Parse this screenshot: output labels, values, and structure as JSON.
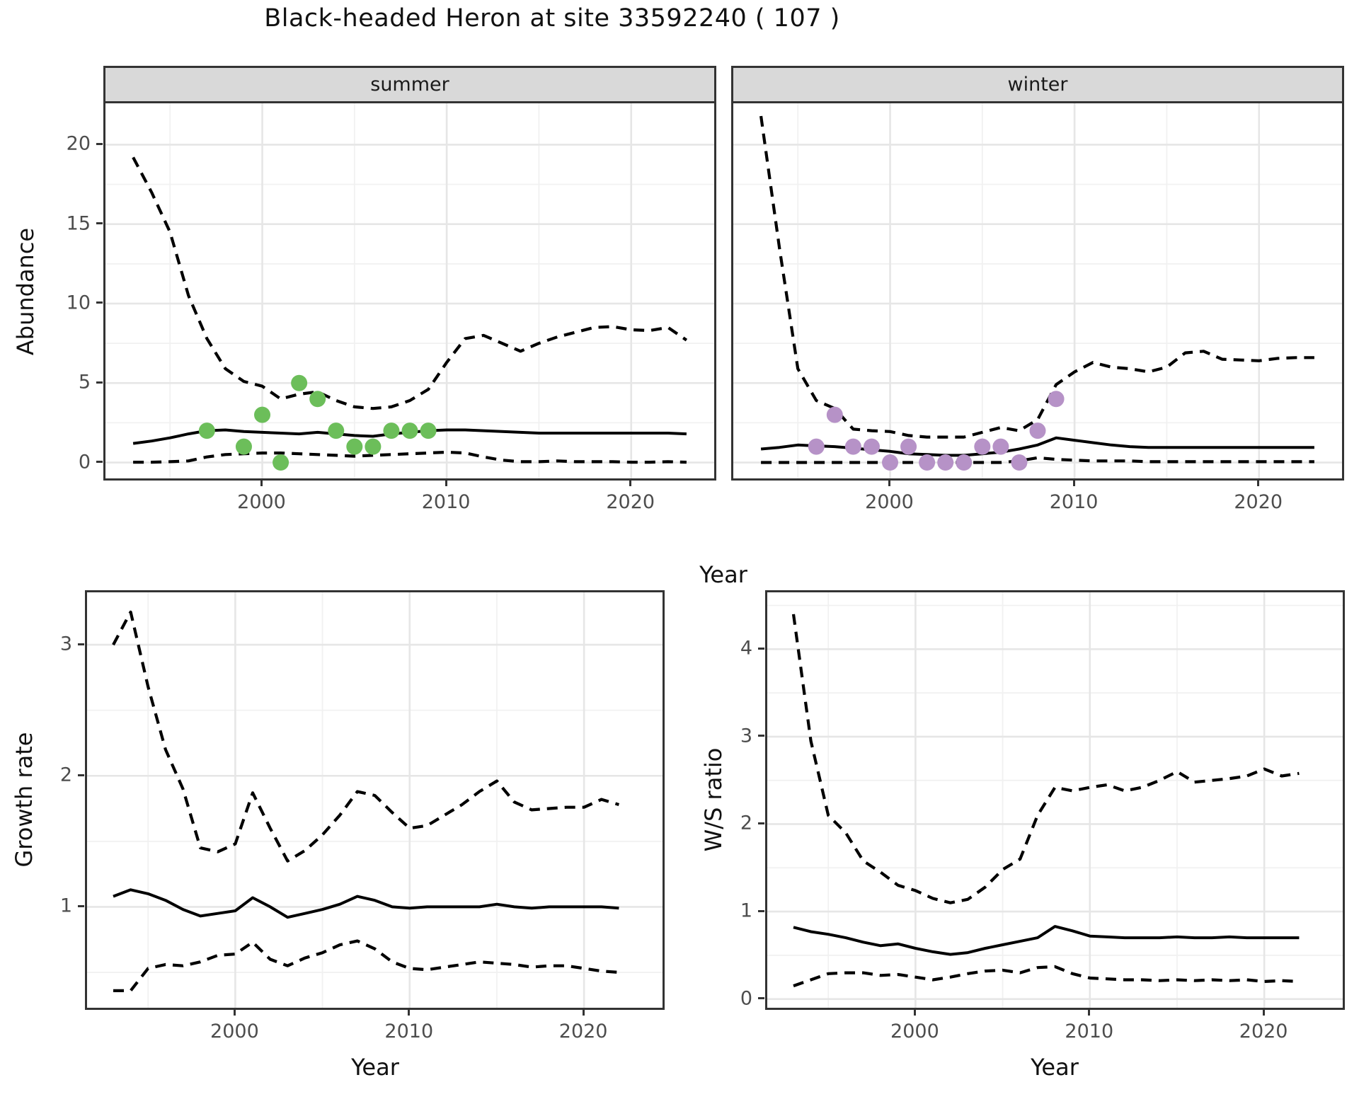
{
  "title": "Black-headed Heron at site 33592240 ( 107 )",
  "facet_labels": {
    "summer": "summer",
    "winter": "winter"
  },
  "axis_titles": {
    "y_top": "Abundance",
    "y_bottom_left": "Growth rate",
    "y_bottom_right": "W/S ratio",
    "x_top": "Year",
    "x_bottom_left": "Year",
    "x_bottom_right": "Year"
  },
  "colors": {
    "summer_points": "#6cbe5a",
    "winter_points": "#b692c7",
    "line": "#000000",
    "grid_major": "#e6e6e6",
    "grid_minor": "#f1f1f1",
    "panel_border": "#333333",
    "strip_bg": "#d9d9d9",
    "tick_text": "#4d4d4d",
    "title_text": "#111111"
  },
  "chart_data": [
    {
      "id": "abundance-summer",
      "type": "line",
      "facet": "summer",
      "ylabel": "Abundance",
      "xlabel": "Year",
      "xlim": [
        1991.5,
        2024.5
      ],
      "ylim": [
        -1.0,
        22.6
      ],
      "xticks": [
        2000,
        2010,
        2020
      ],
      "xminor": [
        1995,
        2005,
        2015
      ],
      "yticks": [
        0,
        5,
        10,
        15,
        20
      ],
      "yminor": [
        2.5,
        7.5,
        12.5,
        17.5
      ],
      "x": [
        1993,
        1994,
        1995,
        1996,
        1997,
        1998,
        1999,
        2000,
        2001,
        2002,
        2003,
        2004,
        2005,
        2006,
        2007,
        2008,
        2009,
        2010,
        2011,
        2012,
        2013,
        2014,
        2015,
        2016,
        2017,
        2018,
        2019,
        2020,
        2021,
        2022,
        2023
      ],
      "series": [
        {
          "name": "upper-credible",
          "style": "dashed",
          "values": [
            19.2,
            17.0,
            14.5,
            10.5,
            7.8,
            5.9,
            5.1,
            4.8,
            4.0,
            4.3,
            4.45,
            3.9,
            3.5,
            3.4,
            3.5,
            3.9,
            4.6,
            6.3,
            7.8,
            8.0,
            7.5,
            7.0,
            7.5,
            7.9,
            8.2,
            8.5,
            8.55,
            8.35,
            8.3,
            8.5,
            7.7
          ]
        },
        {
          "name": "median",
          "style": "solid",
          "values": [
            1.2,
            1.35,
            1.55,
            1.8,
            2.0,
            2.05,
            1.95,
            1.9,
            1.85,
            1.8,
            1.9,
            1.8,
            1.7,
            1.65,
            1.8,
            1.9,
            2.0,
            2.05,
            2.05,
            2.0,
            1.95,
            1.9,
            1.85,
            1.85,
            1.85,
            1.85,
            1.85,
            1.85,
            1.85,
            1.85,
            1.8
          ]
        },
        {
          "name": "lower-credible",
          "style": "dashed",
          "values": [
            0.02,
            0.02,
            0.05,
            0.1,
            0.35,
            0.5,
            0.55,
            0.6,
            0.6,
            0.55,
            0.5,
            0.45,
            0.4,
            0.45,
            0.5,
            0.55,
            0.6,
            0.65,
            0.6,
            0.35,
            0.15,
            0.05,
            0.05,
            0.1,
            0.05,
            0.05,
            0.05,
            0.02,
            0.02,
            0.05,
            0.02
          ]
        }
      ],
      "points": {
        "name": "observed-counts-summer",
        "color_key": "summer_points",
        "data": [
          [
            1997,
            2
          ],
          [
            1999,
            1
          ],
          [
            2000,
            3
          ],
          [
            2001,
            0
          ],
          [
            2002,
            5
          ],
          [
            2003,
            4
          ],
          [
            2004,
            2
          ],
          [
            2005,
            1
          ],
          [
            2006,
            1
          ],
          [
            2007,
            2
          ],
          [
            2008,
            2
          ],
          [
            2009,
            2
          ]
        ]
      }
    },
    {
      "id": "abundance-winter",
      "type": "line",
      "facet": "winter",
      "ylabel": "Abundance",
      "xlabel": "Year",
      "xlim": [
        1991.5,
        2024.5
      ],
      "ylim": [
        -1.0,
        22.6
      ],
      "xticks": [
        2000,
        2010,
        2020
      ],
      "xminor": [
        1995,
        2005,
        2015
      ],
      "yticks": [
        0,
        5,
        10,
        15,
        20
      ],
      "yminor": [
        2.5,
        7.5,
        12.5,
        17.5
      ],
      "x": [
        1993,
        1994,
        1995,
        1996,
        1997,
        1998,
        1999,
        2000,
        2001,
        2002,
        2003,
        2004,
        2005,
        2006,
        2007,
        2008,
        2009,
        2010,
        2011,
        2012,
        2013,
        2014,
        2015,
        2016,
        2017,
        2018,
        2019,
        2020,
        2021,
        2022,
        2023
      ],
      "series": [
        {
          "name": "upper-credible",
          "style": "dashed",
          "values": [
            21.8,
            13.5,
            5.9,
            3.9,
            3.4,
            2.1,
            2.0,
            1.95,
            1.7,
            1.6,
            1.6,
            1.6,
            1.9,
            2.2,
            2.0,
            2.7,
            4.9,
            5.7,
            6.3,
            6.0,
            5.9,
            5.7,
            6.0,
            6.9,
            7.0,
            6.5,
            6.45,
            6.4,
            6.55,
            6.6,
            6.6
          ]
        },
        {
          "name": "median",
          "style": "solid",
          "values": [
            0.85,
            0.95,
            1.1,
            1.05,
            1.0,
            0.9,
            0.8,
            0.7,
            0.55,
            0.5,
            0.45,
            0.45,
            0.55,
            0.65,
            0.85,
            1.1,
            1.55,
            1.4,
            1.25,
            1.1,
            1.0,
            0.95,
            0.95,
            0.95,
            0.95,
            0.95,
            0.95,
            0.95,
            0.95,
            0.95,
            0.95
          ]
        },
        {
          "name": "lower-credible",
          "style": "dashed",
          "values": [
            0,
            0,
            0,
            0,
            0,
            0,
            0,
            0,
            0,
            0,
            0,
            0,
            0,
            0,
            0.1,
            0.3,
            0.2,
            0.15,
            0.1,
            0.1,
            0.1,
            0.05,
            0.05,
            0.05,
            0.05,
            0.05,
            0.05,
            0.05,
            0.05,
            0.05,
            0.05
          ]
        }
      ],
      "points": {
        "name": "observed-counts-winter",
        "color_key": "winter_points",
        "data": [
          [
            1996,
            1
          ],
          [
            1997,
            3
          ],
          [
            1998,
            1
          ],
          [
            1999,
            1
          ],
          [
            2000,
            0
          ],
          [
            2001,
            1
          ],
          [
            2002,
            0
          ],
          [
            2003,
            0
          ],
          [
            2004,
            0
          ],
          [
            2005,
            1
          ],
          [
            2006,
            1
          ],
          [
            2007,
            0
          ],
          [
            2008,
            2
          ],
          [
            2009,
            4
          ]
        ]
      }
    },
    {
      "id": "growth-rate",
      "type": "line",
      "facet": null,
      "ylabel": "Growth rate",
      "xlabel": "Year",
      "xlim": [
        1991.5,
        2024.5
      ],
      "ylim": [
        0.23,
        3.4
      ],
      "xticks": [
        2000,
        2010,
        2020
      ],
      "xminor": [
        1995,
        2005,
        2015
      ],
      "yticks": [
        1,
        2,
        3
      ],
      "yminor": [
        0.5,
        1.5,
        2.5
      ],
      "x": [
        1993,
        1994,
        1995,
        1996,
        1997,
        1998,
        1999,
        2000,
        2001,
        2002,
        2003,
        2004,
        2005,
        2006,
        2007,
        2008,
        2009,
        2010,
        2011,
        2012,
        2013,
        2014,
        2015,
        2016,
        2017,
        2018,
        2019,
        2020,
        2021,
        2022
      ],
      "series": [
        {
          "name": "upper-credible",
          "style": "dashed",
          "values": [
            3.0,
            3.25,
            2.68,
            2.2,
            1.9,
            1.45,
            1.42,
            1.48,
            1.87,
            1.6,
            1.35,
            1.43,
            1.55,
            1.7,
            1.88,
            1.85,
            1.72,
            1.6,
            1.62,
            1.7,
            1.78,
            1.88,
            1.96,
            1.8,
            1.74,
            1.75,
            1.76,
            1.76,
            1.82,
            1.78
          ]
        },
        {
          "name": "median",
          "style": "solid",
          "values": [
            1.08,
            1.13,
            1.1,
            1.05,
            0.98,
            0.93,
            0.95,
            0.97,
            1.07,
            1.0,
            0.92,
            0.95,
            0.98,
            1.02,
            1.08,
            1.05,
            1.0,
            0.99,
            1.0,
            1.0,
            1.0,
            1.0,
            1.02,
            1.0,
            0.99,
            1.0,
            1.0,
            1.0,
            1.0,
            0.99
          ]
        },
        {
          "name": "lower-credible",
          "style": "dashed",
          "values": [
            0.36,
            0.36,
            0.53,
            0.56,
            0.55,
            0.58,
            0.63,
            0.64,
            0.73,
            0.6,
            0.55,
            0.61,
            0.65,
            0.71,
            0.74,
            0.68,
            0.58,
            0.53,
            0.52,
            0.54,
            0.56,
            0.58,
            0.57,
            0.56,
            0.54,
            0.55,
            0.55,
            0.53,
            0.51,
            0.5
          ]
        }
      ],
      "points": null
    },
    {
      "id": "ws-ratio",
      "type": "line",
      "facet": null,
      "ylabel": "W/S ratio",
      "xlabel": "Year",
      "xlim": [
        1991.5,
        2024.5
      ],
      "ylim": [
        -0.1,
        4.65
      ],
      "xticks": [
        2000,
        2010,
        2020
      ],
      "xminor": [
        1995,
        2005,
        2015
      ],
      "yticks": [
        0,
        1,
        2,
        3,
        4
      ],
      "yminor": [
        0.5,
        1.5,
        2.5,
        3.5,
        4.5
      ],
      "x": [
        1993,
        1994,
        1995,
        1996,
        1997,
        1998,
        1999,
        2000,
        2001,
        2002,
        2003,
        2004,
        2005,
        2006,
        2007,
        2008,
        2009,
        2010,
        2011,
        2012,
        2013,
        2014,
        2015,
        2016,
        2017,
        2018,
        2019,
        2020,
        2021,
        2022
      ],
      "series": [
        {
          "name": "upper-credible",
          "style": "dashed",
          "values": [
            4.4,
            2.95,
            2.1,
            1.9,
            1.58,
            1.45,
            1.3,
            1.24,
            1.15,
            1.1,
            1.14,
            1.28,
            1.48,
            1.6,
            2.1,
            2.42,
            2.38,
            2.42,
            2.45,
            2.38,
            2.42,
            2.5,
            2.6,
            2.48,
            2.5,
            2.52,
            2.55,
            2.63,
            2.55,
            2.58
          ]
        },
        {
          "name": "median",
          "style": "solid",
          "values": [
            0.82,
            0.77,
            0.74,
            0.7,
            0.65,
            0.61,
            0.63,
            0.58,
            0.54,
            0.51,
            0.53,
            0.58,
            0.62,
            0.66,
            0.7,
            0.83,
            0.78,
            0.72,
            0.71,
            0.7,
            0.7,
            0.7,
            0.71,
            0.7,
            0.7,
            0.71,
            0.7,
            0.7,
            0.7,
            0.7
          ]
        },
        {
          "name": "lower-credible",
          "style": "dashed",
          "values": [
            0.15,
            0.22,
            0.29,
            0.3,
            0.3,
            0.27,
            0.28,
            0.25,
            0.22,
            0.25,
            0.29,
            0.32,
            0.33,
            0.3,
            0.36,
            0.37,
            0.29,
            0.24,
            0.23,
            0.22,
            0.22,
            0.21,
            0.22,
            0.21,
            0.22,
            0.21,
            0.22,
            0.2,
            0.21,
            0.2
          ]
        }
      ],
      "points": null
    }
  ]
}
